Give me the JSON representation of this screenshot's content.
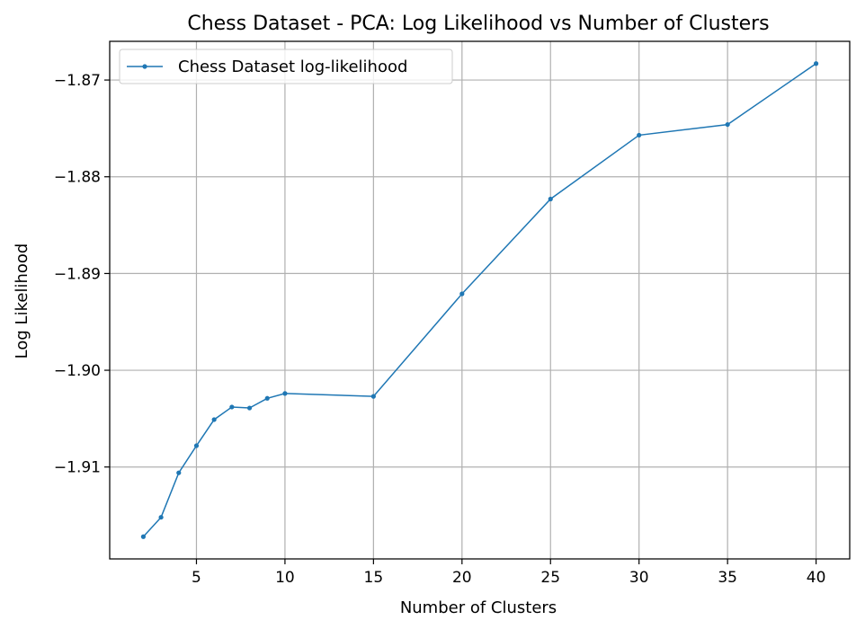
{
  "chart_data": {
    "type": "line",
    "title": "Chess Dataset - PCA: Log Likelihood vs Number of Clusters",
    "xlabel": "Number of Clusters",
    "ylabel": "Log Likelihood",
    "x": [
      2,
      3,
      4,
      5,
      6,
      7,
      8,
      9,
      10,
      15,
      20,
      25,
      30,
      35,
      40
    ],
    "series": [
      {
        "name": "Chess Dataset log-likelihood",
        "values": [
          -1.9172,
          -1.9152,
          -1.9106,
          -1.9078,
          -1.9051,
          -1.9038,
          -1.9039,
          -1.9029,
          -1.9024,
          -1.9027,
          -1.8921,
          -1.8823,
          -1.8757,
          -1.8746,
          -1.8683
        ]
      }
    ],
    "xlim": [
      0.1,
      41.9
    ],
    "ylim": [
      -1.9195,
      -1.866
    ],
    "xticks": [
      5,
      10,
      15,
      20,
      25,
      30,
      35,
      40
    ],
    "xtick_labels": [
      "5",
      "10",
      "15",
      "20",
      "25",
      "30",
      "35",
      "40"
    ],
    "yticks": [
      -1.87,
      -1.88,
      -1.89,
      -1.9,
      -1.91
    ],
    "ytick_labels": [
      "−1.87",
      "−1.88",
      "−1.89",
      "−1.90",
      "−1.91"
    ],
    "grid": true,
    "legend_position": "top-left",
    "colors": {
      "line": "#1f77b4",
      "grid": "#b0b0b0",
      "axes": "#000000"
    }
  }
}
